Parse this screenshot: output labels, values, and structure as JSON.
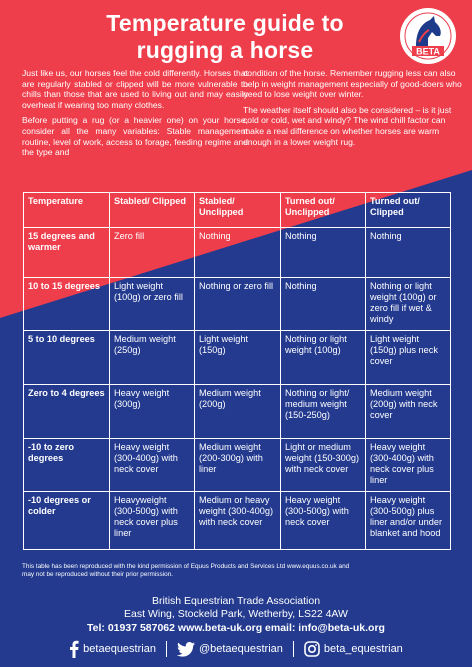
{
  "colors": {
    "red": "#ee3d4b",
    "blue": "#233a8f",
    "text": "#ffffff"
  },
  "header": {
    "title_line1": "Temperature guide to",
    "title_line2": "rugging a horse",
    "logo_text": "BETA"
  },
  "intro": {
    "left_p1": "Just like us, our horses feel the cold differently. Horses that are regularly stabled or clipped will be more vulnerable to chills than those that are used to living out and may easily overheat if wearing too many clothes.",
    "left_p2": "Before putting a rug (or a heavier one) on your horse, consider all the many variables: Stable management routine, level of work, access to forage, feeding regime and the type and",
    "right_p1": "condition of the horse. Remember rugging less can also help in weight management especially of good-doers who need to lose weight over winter.",
    "right_p2": "The weather itself should also be considered – is it just cold or cold, wet and windy? The wind chill factor can make a real difference on whether horses are warm enough in a lower weight rug."
  },
  "table": {
    "headers": [
      "Temperature",
      "Stabled/ Clipped",
      "Stabled/ Unclipped",
      "Turned out/ Unclipped",
      "Turned out/ Clipped"
    ],
    "rows": [
      [
        "15 degrees and warmer",
        "Zero fill",
        "Nothing",
        "Nothing",
        "Nothing"
      ],
      [
        "10 to 15 degrees",
        "Light weight (100g) or zero fill",
        "Nothing or zero fill",
        "Nothing",
        "Nothing or light weight (100g) or zero fill if wet & windy"
      ],
      [
        "5 to 10 degrees",
        "Medium weight (250g)",
        "Light weight (150g)",
        "Nothing or light weight (100g)",
        "Light weight (150g) plus neck cover"
      ],
      [
        "Zero to 4 degrees",
        "Heavy weight (300g)",
        "Medium weight (200g)",
        " Nothing or light/ medium weight (150-250g)",
        "Medium weight (200g) with neck cover"
      ],
      [
        "-10 to zero degrees",
        "Heavy weight (300-400g) with neck cover",
        "Medium weight (200-300g) with liner",
        "Light or medium weight (150-300g) with neck cover",
        "Heavy weight (300-400g) with neck cover plus liner"
      ],
      [
        "-10 degrees or colder",
        "Heavyweight (300-500g) with neck cover plus liner",
        "Medium or heavy weight (300-400g) with neck cover",
        "Heavy weight (300-500g) with neck cover",
        "Heavy weight (300-500g) plus liner and/or under blanket and hood"
      ]
    ]
  },
  "footer": {
    "footnote_line1": "This table has been reproduced with the kind permission of Equus Products and Services Ltd  www.equus.co.uk and",
    "footnote_line2": "may not be reproduced without their prior permission.",
    "assoc_name": "British Equestrian Trade Association",
    "assoc_address": "East Wing, Stockeld Park, Wetherby, LS22 4AW",
    "contact": "Tel: 01937 587062  www.beta-uk.org  email: info@beta-uk.org",
    "facebook": "betaequestrian",
    "twitter": "@betaequestrian",
    "instagram": "beta_equestrian"
  }
}
